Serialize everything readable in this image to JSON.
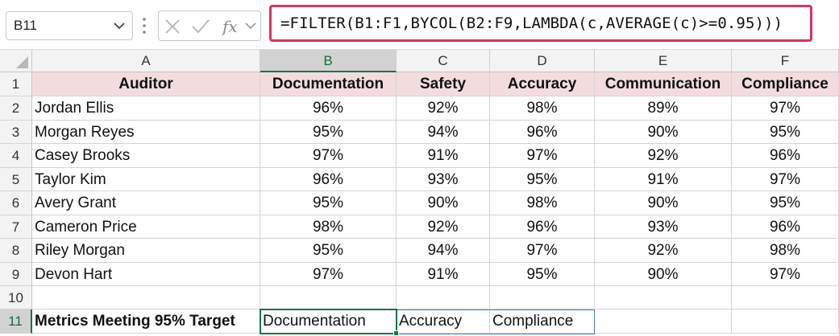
{
  "formula_bar": {
    "name_box": "B11",
    "formula": "=FILTER(B1:F1,BYCOL(B2:F9,LAMBDA(c,AVERAGE(c)>=0.95)))"
  },
  "columns": [
    "A",
    "B",
    "C",
    "D",
    "E",
    "F"
  ],
  "rows": [
    "1",
    "2",
    "3",
    "4",
    "5",
    "6",
    "7",
    "8",
    "9",
    "10",
    "11"
  ],
  "headers": [
    "Auditor",
    "Documentation",
    "Safety",
    "Accuracy",
    "Communication",
    "Compliance"
  ],
  "table": [
    [
      "Jordan Ellis",
      "96%",
      "92%",
      "98%",
      "89%",
      "97%"
    ],
    [
      "Morgan Reyes",
      "95%",
      "94%",
      "96%",
      "90%",
      "95%"
    ],
    [
      "Casey Brooks",
      "97%",
      "91%",
      "97%",
      "92%",
      "96%"
    ],
    [
      "Taylor Kim",
      "96%",
      "93%",
      "95%",
      "91%",
      "97%"
    ],
    [
      "Avery Grant",
      "95%",
      "90%",
      "98%",
      "90%",
      "95%"
    ],
    [
      "Cameron Price",
      "98%",
      "92%",
      "96%",
      "93%",
      "96%"
    ],
    [
      "Riley Morgan",
      "95%",
      "94%",
      "97%",
      "92%",
      "98%"
    ],
    [
      "Devon Hart",
      "97%",
      "91%",
      "95%",
      "90%",
      "97%"
    ]
  ],
  "summary": {
    "label": "Metrics Meeting 95% Target",
    "results": [
      "Documentation",
      "Accuracy",
      "Compliance"
    ]
  },
  "colors": {
    "header_fill": "#f3dcdf",
    "formula_highlight": "#d6365c",
    "selection": "#1e7145",
    "spill_border": "#4a79c8"
  },
  "icons": [
    "chevron-down-icon",
    "more-vert-icon",
    "cancel-icon",
    "enter-icon",
    "fx-icon"
  ]
}
